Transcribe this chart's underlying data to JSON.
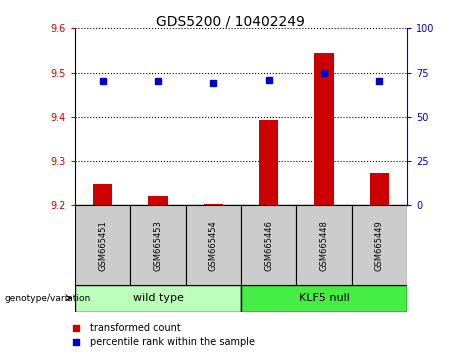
{
  "title": "GDS5200 / 10402249",
  "samples": [
    "GSM665451",
    "GSM665453",
    "GSM665454",
    "GSM665446",
    "GSM665448",
    "GSM665449"
  ],
  "groups": [
    "wild type",
    "wild type",
    "wild type",
    "KLF5 null",
    "KLF5 null",
    "KLF5 null"
  ],
  "group_label": "genotype/variation",
  "transformed_counts": [
    9.248,
    9.221,
    9.203,
    9.392,
    9.545,
    9.272
  ],
  "percentile_ranks": [
    70,
    70,
    69,
    71,
    75,
    70
  ],
  "ylim_left": [
    9.2,
    9.6
  ],
  "ylim_right": [
    0,
    100
  ],
  "yticks_left": [
    9.2,
    9.3,
    9.4,
    9.5,
    9.6
  ],
  "yticks_right": [
    0,
    25,
    50,
    75,
    100
  ],
  "bar_color": "#cc0000",
  "dot_color": "#0000cc",
  "bar_bottom": 9.2,
  "wild_type_color": "#bbffbb",
  "klf5_color": "#44ee44",
  "sample_box_color": "#cccccc",
  "legend_items": [
    "transformed count",
    "percentile rank within the sample"
  ]
}
